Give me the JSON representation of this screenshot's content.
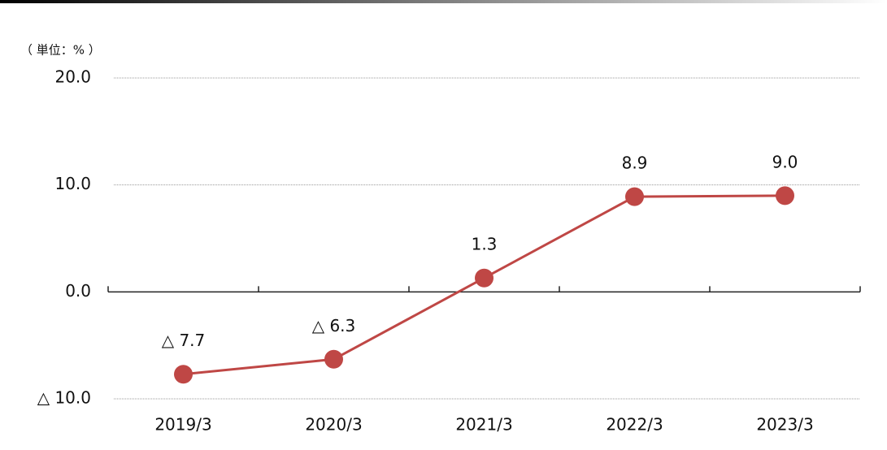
{
  "chart_data": {
    "type": "line",
    "unit_label": "（ 単位：% ）",
    "categories": [
      "2019/3",
      "2020/3",
      "2021/3",
      "2022/3",
      "2023/3"
    ],
    "series": [
      {
        "color": "#bf4745",
        "values": [
          -7.7,
          -6.3,
          1.3,
          8.9,
          9.0
        ],
        "value_labels": [
          "△ 7.7",
          "△ 6.3",
          "1.3",
          "8.9",
          "9.0"
        ]
      }
    ],
    "ylim": [
      -10,
      20
    ],
    "yticks": [
      {
        "value": 20,
        "label": "20.0"
      },
      {
        "value": 10,
        "label": "10.0"
      },
      {
        "value": 0,
        "label": "0.0"
      },
      {
        "value": -10,
        "label": "△ 10.0"
      }
    ],
    "grid": true
  }
}
